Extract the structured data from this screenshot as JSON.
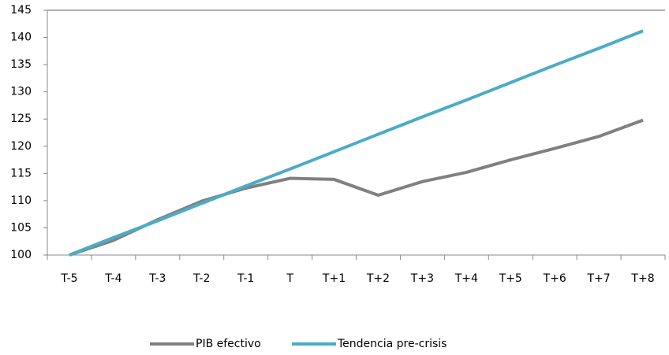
{
  "chart_data": {
    "type": "line",
    "categories": [
      "T-5",
      "T-4",
      "T-3",
      "T-2",
      "T-1",
      "T",
      "T+1",
      "T+2",
      "T+3",
      "T+4",
      "T+5",
      "T+6",
      "T+7",
      "T+8"
    ],
    "series": [
      {
        "name": "PIB efectivo",
        "color": "#808080",
        "values": [
          100,
          102.7,
          106.5,
          109.9,
          112.3,
          114.1,
          113.9,
          111,
          113.5,
          115.2,
          117.5,
          119.6,
          121.8,
          124.8
        ]
      },
      {
        "name": "Tendencia pre-crisis",
        "color": "#4bacc6",
        "values": [
          100,
          103.2,
          106.3,
          109.5,
          112.7,
          115.8,
          119,
          122.2,
          125.4,
          128.5,
          131.7,
          134.9,
          138,
          141.2
        ]
      }
    ],
    "ylim": [
      100,
      145
    ],
    "yticks": [
      100,
      105,
      110,
      115,
      120,
      125,
      130,
      135,
      140,
      145
    ],
    "grid": false,
    "legend": "bottom"
  }
}
